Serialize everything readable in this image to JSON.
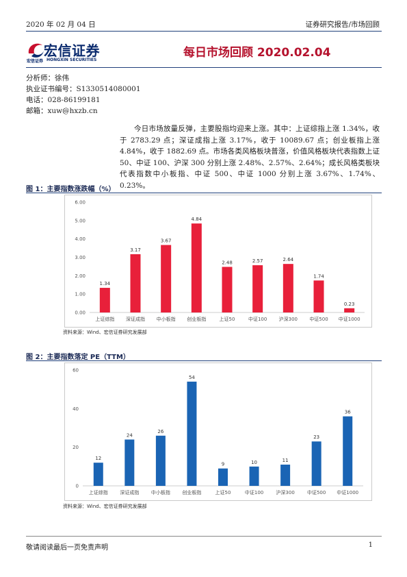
{
  "header": {
    "date": "2020 年 02 月 04 日",
    "category": "证券研究报告/市场回顾",
    "title": "每日市场回顾 2020.02.04",
    "logo_cn": "宏信证券",
    "logo_sub_cn": "宏信证券",
    "logo_sub_en": "HONGXIN SECURITIES"
  },
  "analyst": {
    "name_line": "分析师：徐伟",
    "license_line": "执业证书编号：S1330514080001",
    "phone_line": "电话：028-86199181",
    "email_line": "邮箱：xuw@hxzb.cn"
  },
  "summary": "今日市场放量反弹，主要股指均迎来上涨。其中：上证综指上涨 1.34%，收于 2783.29 点；深证成指上涨 3.17%，收于 10089.67 点；创业板指上涨 4.84%，收于 1882.69 点。市场各类风格板块普涨，价值风格板块代表指数上证 50、中证 100、沪深 300 分别上涨 2.48%、2.57%、2.64%；成长风格类板块代表指数中小板指、中证 500、中证 1000 分别上涨 3.67%、1.74%、0.23%。",
  "figure1": {
    "title": "图 1：主要指数涨跌幅（%）",
    "source": "资料来源：Wind、宏信证券研究发展部"
  },
  "figure2": {
    "title": "图 2：主要指数落定 PE（TTM）",
    "source": "资料来源：Wind、宏信证券研究发展部"
  },
  "chart_data": [
    {
      "type": "bar",
      "categories": [
        "上证综指",
        "深证成指",
        "中小板指",
        "创业板指",
        "上证50",
        "中证100",
        "沪深300",
        "中证500",
        "中证1000"
      ],
      "values": [
        1.34,
        3.17,
        3.67,
        4.84,
        2.48,
        2.57,
        2.64,
        1.74,
        0.23
      ],
      "value_labels": [
        "1.34",
        "3.17",
        "3.67",
        "4.84",
        "2.48",
        "2.57",
        "2.64",
        "1.74",
        "0.23"
      ],
      "yticks": [
        "0.00",
        "1.00",
        "2.00",
        "3.00",
        "4.00",
        "5.00",
        "6.00"
      ],
      "ylim": [
        0,
        6
      ],
      "color": "#e8203a",
      "grid": false
    },
    {
      "type": "bar",
      "categories": [
        "上证综指",
        "深证成指",
        "中小板指",
        "创业板指",
        "上证50",
        "中证100",
        "沪深300",
        "中证500",
        "中证1000"
      ],
      "values": [
        12,
        24,
        26,
        54,
        9,
        10,
        11,
        23,
        36
      ],
      "value_labels": [
        "12",
        "24",
        "26",
        "54",
        "9",
        "10",
        "11",
        "23",
        "36"
      ],
      "yticks": [
        "0",
        "20",
        "40",
        "60"
      ],
      "ylim": [
        0,
        60
      ],
      "color": "#1a64b4",
      "grid": false
    }
  ],
  "footer": {
    "disclaimer": "敬请阅读最后一页免责声明",
    "page": "1"
  }
}
